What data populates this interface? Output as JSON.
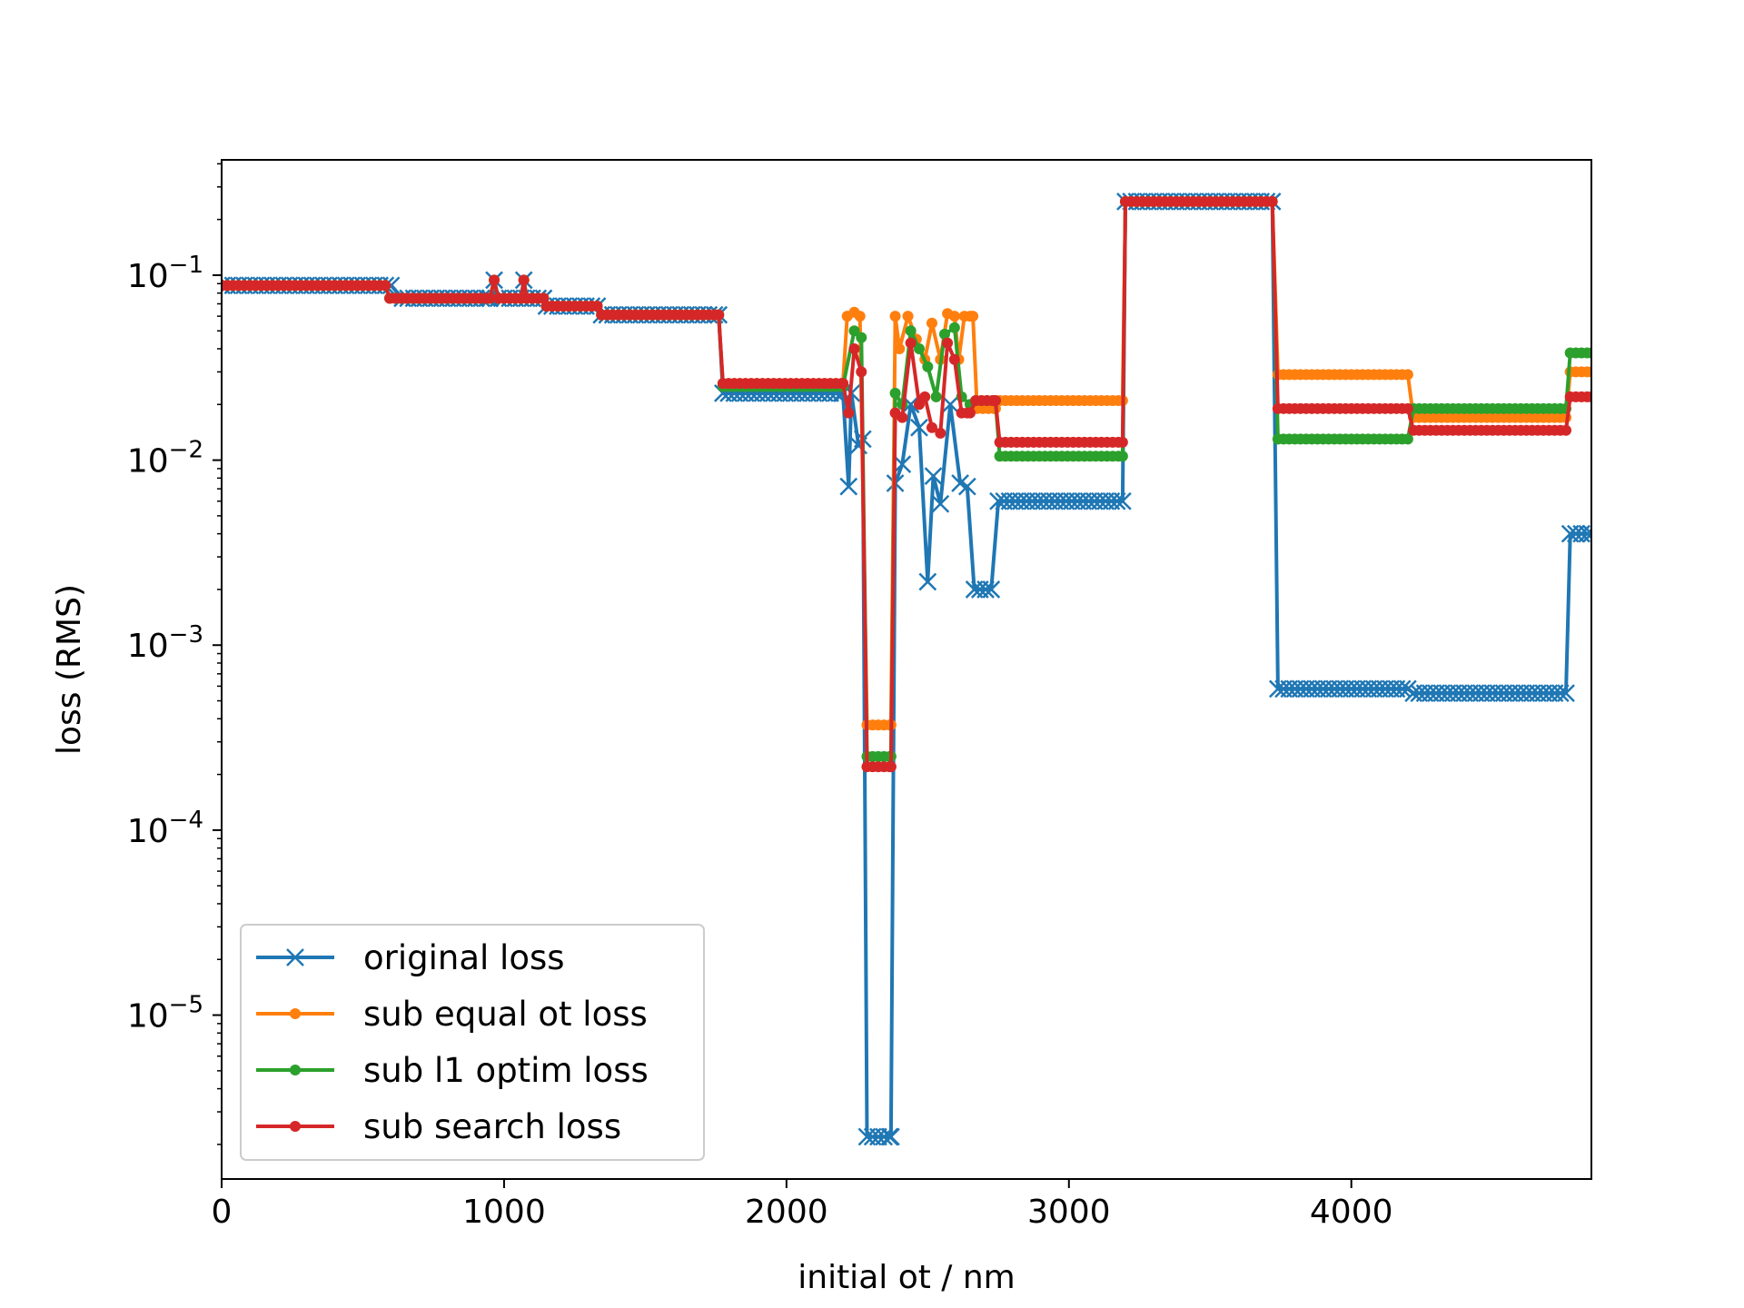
{
  "chart_data": {
    "type": "line",
    "title": "",
    "xlabel": "initial ot / nm",
    "ylabel": "loss (RMS)",
    "xlim": [
      0,
      4850
    ],
    "ylim": [
      1.3e-06,
      0.42
    ],
    "yscale": "log",
    "grid": false,
    "legend_position": "lower-left",
    "x_ticks": [
      {
        "value": 0,
        "label": "0"
      },
      {
        "value": 1000,
        "label": "1000"
      },
      {
        "value": 2000,
        "label": "2000"
      },
      {
        "value": 3000,
        "label": "3000"
      },
      {
        "value": 4000,
        "label": "4000"
      }
    ],
    "y_ticks": [
      {
        "value": 0.1,
        "base": "10",
        "exp": "−1"
      },
      {
        "value": 0.01,
        "base": "10",
        "exp": "−2"
      },
      {
        "value": 0.001,
        "base": "10",
        "exp": "−3"
      },
      {
        "value": 0.0001,
        "base": "10",
        "exp": "−4"
      },
      {
        "value": 1e-05,
        "base": "10",
        "exp": "−5"
      }
    ],
    "series": [
      {
        "name": "original loss",
        "color": "#1f77b4",
        "marker": "x",
        "points": [
          [
            0,
            0.088
          ],
          [
            600,
            0.088
          ],
          [
            640,
            0.075
          ],
          [
            950,
            0.075
          ],
          [
            965,
            0.094
          ],
          [
            980,
            0.075
          ],
          [
            1060,
            0.075
          ],
          [
            1070,
            0.094
          ],
          [
            1080,
            0.075
          ],
          [
            1140,
            0.075
          ],
          [
            1150,
            0.068
          ],
          [
            1330,
            0.068
          ],
          [
            1345,
            0.061
          ],
          [
            1760,
            0.061
          ],
          [
            1775,
            0.023
          ],
          [
            2200,
            0.023
          ],
          [
            2220,
            0.0072
          ],
          [
            2230,
            0.023
          ],
          [
            2255,
            0.012
          ],
          [
            2270,
            0.013
          ],
          [
            2285,
            2.2e-06
          ],
          [
            2370,
            2.2e-06
          ],
          [
            2385,
            0.0075
          ],
          [
            2410,
            0.0095
          ],
          [
            2440,
            0.02
          ],
          [
            2470,
            0.015
          ],
          [
            2500,
            0.0022
          ],
          [
            2520,
            0.0082
          ],
          [
            2545,
            0.0058
          ],
          [
            2580,
            0.02
          ],
          [
            2615,
            0.0075
          ],
          [
            2640,
            0.0072
          ],
          [
            2665,
            0.002
          ],
          [
            2725,
            0.002
          ],
          [
            2750,
            0.006
          ],
          [
            3190,
            0.006
          ],
          [
            3200,
            0.25
          ],
          [
            3720,
            0.25
          ],
          [
            3740,
            0.00058
          ],
          [
            4200,
            0.00058
          ],
          [
            4220,
            0.00055
          ],
          [
            4760,
            0.00055
          ],
          [
            4775,
            0.004
          ],
          [
            4850,
            0.004
          ]
        ]
      },
      {
        "name": "sub equal ot loss",
        "color": "#ff7f0e",
        "marker": "dot",
        "points": [
          [
            0,
            0.088
          ],
          [
            580,
            0.088
          ],
          [
            595,
            0.075
          ],
          [
            950,
            0.075
          ],
          [
            965,
            0.094
          ],
          [
            980,
            0.075
          ],
          [
            1060,
            0.075
          ],
          [
            1070,
            0.094
          ],
          [
            1080,
            0.075
          ],
          [
            1140,
            0.075
          ],
          [
            1150,
            0.068
          ],
          [
            1330,
            0.068
          ],
          [
            1345,
            0.061
          ],
          [
            1760,
            0.061
          ],
          [
            1775,
            0.026
          ],
          [
            2200,
            0.026
          ],
          [
            2215,
            0.06
          ],
          [
            2240,
            0.063
          ],
          [
            2260,
            0.06
          ],
          [
            2285,
            0.00037
          ],
          [
            2370,
            0.00037
          ],
          [
            2385,
            0.06
          ],
          [
            2400,
            0.04
          ],
          [
            2430,
            0.06
          ],
          [
            2460,
            0.045
          ],
          [
            2490,
            0.035
          ],
          [
            2515,
            0.055
          ],
          [
            2545,
            0.035
          ],
          [
            2570,
            0.062
          ],
          [
            2595,
            0.06
          ],
          [
            2610,
            0.035
          ],
          [
            2630,
            0.06
          ],
          [
            2660,
            0.06
          ],
          [
            2675,
            0.019
          ],
          [
            2740,
            0.019
          ],
          [
            2755,
            0.021
          ],
          [
            3190,
            0.021
          ],
          [
            3200,
            0.25
          ],
          [
            3720,
            0.25
          ],
          [
            3740,
            0.029
          ],
          [
            4200,
            0.029
          ],
          [
            4220,
            0.017
          ],
          [
            4760,
            0.017
          ],
          [
            4775,
            0.03
          ],
          [
            4850,
            0.03
          ]
        ]
      },
      {
        "name": "sub l1 optim loss",
        "color": "#2ca02c",
        "marker": "dot",
        "points": [
          [
            0,
            0.088
          ],
          [
            580,
            0.088
          ],
          [
            595,
            0.075
          ],
          [
            950,
            0.075
          ],
          [
            965,
            0.094
          ],
          [
            980,
            0.075
          ],
          [
            1060,
            0.075
          ],
          [
            1070,
            0.094
          ],
          [
            1080,
            0.075
          ],
          [
            1140,
            0.075
          ],
          [
            1150,
            0.068
          ],
          [
            1330,
            0.068
          ],
          [
            1345,
            0.061
          ],
          [
            1760,
            0.061
          ],
          [
            1775,
            0.025
          ],
          [
            2200,
            0.025
          ],
          [
            2240,
            0.05
          ],
          [
            2265,
            0.046
          ],
          [
            2285,
            0.00025
          ],
          [
            2370,
            0.00025
          ],
          [
            2385,
            0.023
          ],
          [
            2410,
            0.02
          ],
          [
            2440,
            0.05
          ],
          [
            2470,
            0.04
          ],
          [
            2500,
            0.032
          ],
          [
            2530,
            0.022
          ],
          [
            2560,
            0.048
          ],
          [
            2595,
            0.052
          ],
          [
            2620,
            0.022
          ],
          [
            2650,
            0.02
          ],
          [
            2670,
            0.021
          ],
          [
            2740,
            0.021
          ],
          [
            2755,
            0.0105
          ],
          [
            3190,
            0.0105
          ],
          [
            3200,
            0.25
          ],
          [
            3720,
            0.25
          ],
          [
            3740,
            0.013
          ],
          [
            4200,
            0.013
          ],
          [
            4220,
            0.019
          ],
          [
            4760,
            0.019
          ],
          [
            4775,
            0.038
          ],
          [
            4850,
            0.038
          ]
        ]
      },
      {
        "name": "sub search loss",
        "color": "#d62728",
        "marker": "dot",
        "points": [
          [
            0,
            0.088
          ],
          [
            580,
            0.088
          ],
          [
            595,
            0.075
          ],
          [
            950,
            0.075
          ],
          [
            965,
            0.094
          ],
          [
            980,
            0.075
          ],
          [
            1060,
            0.075
          ],
          [
            1070,
            0.094
          ],
          [
            1080,
            0.075
          ],
          [
            1140,
            0.075
          ],
          [
            1150,
            0.068
          ],
          [
            1330,
            0.068
          ],
          [
            1345,
            0.061
          ],
          [
            1760,
            0.061
          ],
          [
            1775,
            0.026
          ],
          [
            2200,
            0.026
          ],
          [
            2220,
            0.018
          ],
          [
            2240,
            0.04
          ],
          [
            2265,
            0.03
          ],
          [
            2285,
            0.00022
          ],
          [
            2370,
            0.00022
          ],
          [
            2385,
            0.018
          ],
          [
            2410,
            0.017
          ],
          [
            2440,
            0.043
          ],
          [
            2470,
            0.02
          ],
          [
            2490,
            0.022
          ],
          [
            2515,
            0.015
          ],
          [
            2545,
            0.014
          ],
          [
            2570,
            0.043
          ],
          [
            2595,
            0.035
          ],
          [
            2620,
            0.018
          ],
          [
            2650,
            0.018
          ],
          [
            2670,
            0.021
          ],
          [
            2740,
            0.021
          ],
          [
            2755,
            0.0125
          ],
          [
            3190,
            0.0125
          ],
          [
            3200,
            0.25
          ],
          [
            3720,
            0.25
          ],
          [
            3740,
            0.019
          ],
          [
            4200,
            0.019
          ],
          [
            4220,
            0.0145
          ],
          [
            4760,
            0.0145
          ],
          [
            4775,
            0.022
          ],
          [
            4850,
            0.022
          ]
        ]
      }
    ]
  }
}
